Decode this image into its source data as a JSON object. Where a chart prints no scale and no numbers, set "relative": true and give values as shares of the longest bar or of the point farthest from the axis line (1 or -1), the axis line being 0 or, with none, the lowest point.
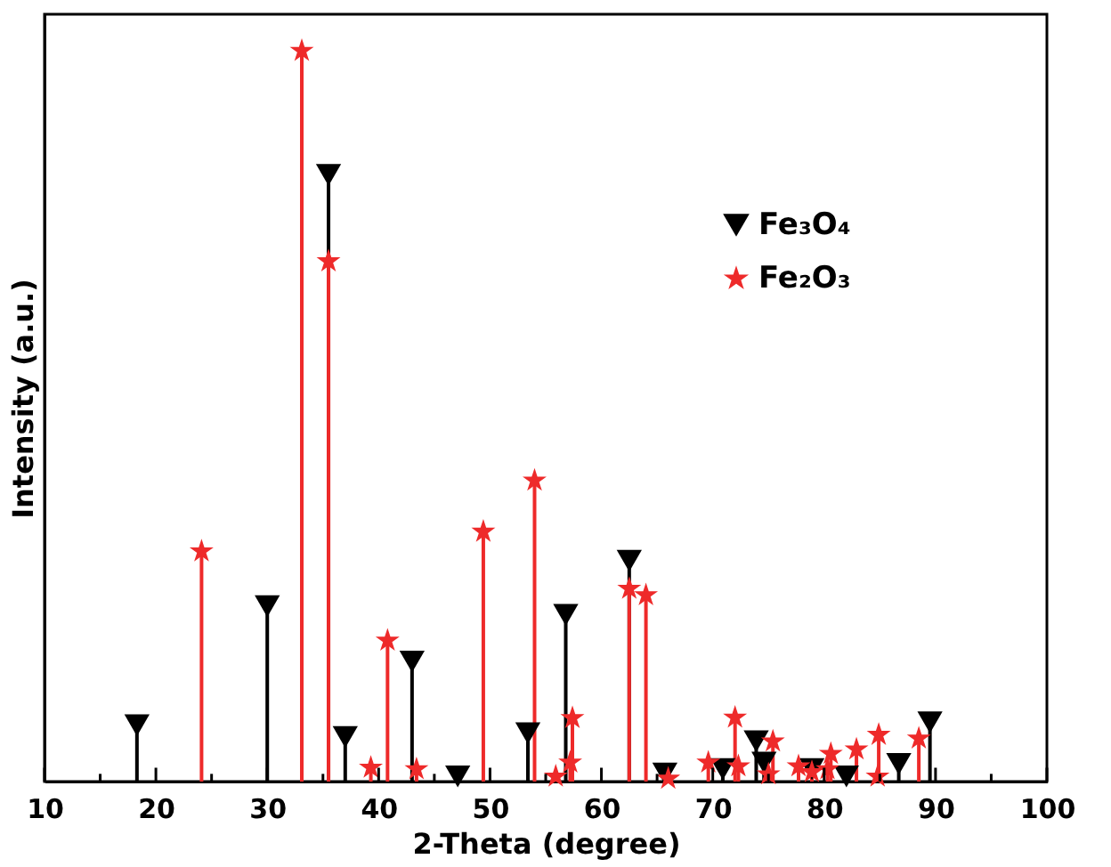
{
  "chart_data": {
    "type": "lollipop",
    "xlabel": "2-Theta (degree)",
    "ylabel": "Intensity (a.u.)",
    "relative": true,
    "xlim": [
      10,
      100
    ],
    "xticks": [
      10,
      {
        "value": 15,
        "label": null
      },
      20,
      {
        "value": 25,
        "label": null
      },
      30,
      {
        "value": 35,
        "label": null
      },
      40,
      {
        "value": 45,
        "label": null
      },
      50,
      {
        "value": 55,
        "label": null
      },
      60,
      {
        "value": 65,
        "label": null
      },
      70,
      {
        "value": 75,
        "label": null
      },
      80,
      {
        "value": 85,
        "label": null
      },
      90,
      {
        "value": 95,
        "label": null
      },
      100
    ],
    "tick_labels": "x",
    "grid": false,
    "legend": "top right",
    "series": [
      {
        "name": "Fe₃O₄",
        "color": "#000000",
        "marker": "triangle",
        "x": [
          18.3,
          30.0,
          35.5,
          37.0,
          43.0,
          47.1,
          53.4,
          56.8,
          62.5,
          65.7,
          70.9,
          73.9,
          74.6,
          78.9,
          82.0,
          86.7,
          89.5
        ],
        "values": [
          0.077,
          0.24,
          0.83,
          0.061,
          0.164,
          0.007,
          0.066,
          0.228,
          0.302,
          0.011,
          0.017,
          0.055,
          0.026,
          0.017,
          0.007,
          0.024,
          0.081
        ]
      },
      {
        "name": "Fe₂O₃",
        "color": "#ee2a2a",
        "marker": "star",
        "x": [
          24.1,
          33.1,
          35.5,
          39.3,
          40.8,
          43.4,
          49.4,
          54.0,
          55.9,
          57.2,
          57.4,
          62.5,
          64.0,
          66.0,
          69.6,
          72.0,
          72.3,
          75.0,
          75.4,
          77.7,
          78.9,
          80.3,
          80.6,
          82.9,
          84.8,
          84.9,
          88.5
        ],
        "values": [
          0.315,
          1.0,
          0.712,
          0.019,
          0.193,
          0.017,
          0.342,
          0.412,
          0.007,
          0.026,
          0.087,
          0.264,
          0.255,
          0.004,
          0.026,
          0.0875,
          0.021,
          0.01,
          0.055,
          0.021,
          0.013,
          0.017,
          0.038,
          0.044,
          0.007,
          0.064,
          0.059
        ]
      }
    ]
  }
}
